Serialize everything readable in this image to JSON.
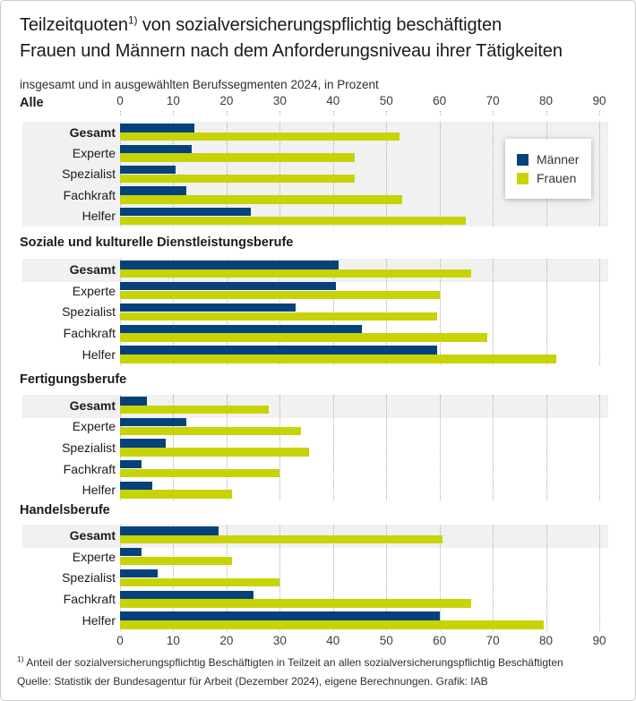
{
  "title": {
    "pre": "Teilzeitquoten",
    "sup": "1)",
    "post": " von sozialversicherungspflichtig beschäftigten",
    "line2": "Frauen und Männern nach dem Anforderungsniveau ihrer Tätigkeiten"
  },
  "subtitle": "insgesamt und in ausgewählten Berufssegmenten 2024, in Prozent",
  "axis": {
    "ticks": [
      0,
      10,
      20,
      30,
      40,
      50,
      60,
      70,
      80,
      90
    ],
    "max": 90
  },
  "legend": {
    "items": [
      {
        "label": "Männer",
        "color": "#05417a"
      },
      {
        "label": "Frauen",
        "color": "#c6d405"
      }
    ]
  },
  "chart_data": {
    "type": "bar",
    "orientation": "horizontal",
    "title": "Teilzeitquoten von sozialversicherungspflichtig beschäftigten Frauen und Männern nach dem Anforderungsniveau ihrer Tätigkeiten",
    "subtitle": "insgesamt und in ausgewählten Berufssegmenten 2024, in Prozent",
    "unit": "Prozent",
    "xlim": [
      0,
      90
    ],
    "grid": "dotted-vertical",
    "categories": [
      "Gesamt",
      "Experte",
      "Spezialist",
      "Fachkraft",
      "Helfer"
    ],
    "sections": [
      {
        "label": "Alle",
        "highlight": "all",
        "series": [
          {
            "name": "Männer",
            "color": "#05417a",
            "values": [
              14,
              13.5,
              10.5,
              12.5,
              24.5
            ]
          },
          {
            "name": "Frauen",
            "color": "#c6d405",
            "values": [
              52.5,
              44,
              44,
              53,
              65
            ]
          }
        ]
      },
      {
        "label": "Soziale und kulturelle Dienstleistungsberufe",
        "highlight": "first",
        "series": [
          {
            "name": "Männer",
            "color": "#05417a",
            "values": [
              41,
              40.5,
              33,
              45.5,
              59.5
            ]
          },
          {
            "name": "Frauen",
            "color": "#c6d405",
            "values": [
              66,
              60,
              59.5,
              69,
              82
            ]
          }
        ]
      },
      {
        "label": "Fertigungsberufe",
        "highlight": "first",
        "series": [
          {
            "name": "Männer",
            "color": "#05417a",
            "values": [
              5,
              12.5,
              8.5,
              4,
              6
            ]
          },
          {
            "name": "Frauen",
            "color": "#c6d405",
            "values": [
              28,
              34,
              35.5,
              30,
              21
            ]
          }
        ]
      },
      {
        "label": "Handelsberufe",
        "highlight": "first",
        "series": [
          {
            "name": "Männer",
            "color": "#05417a",
            "values": [
              18.5,
              4,
              7,
              25,
              60
            ]
          },
          {
            "name": "Frauen",
            "color": "#c6d405",
            "values": [
              60.5,
              21,
              30,
              66,
              79.5
            ]
          }
        ]
      }
    ]
  },
  "footnote": {
    "sup": "1)",
    "text": " Anteil der sozialversicherungspflichtig Beschäftigten in Teilzeit an allen sozialversicherungspflichtig Beschäftigten"
  },
  "source": "Quelle: Statistik der Bundesagentur für Arbeit (Dezember 2024), eigene Berechnungen. Grafik: IAB"
}
